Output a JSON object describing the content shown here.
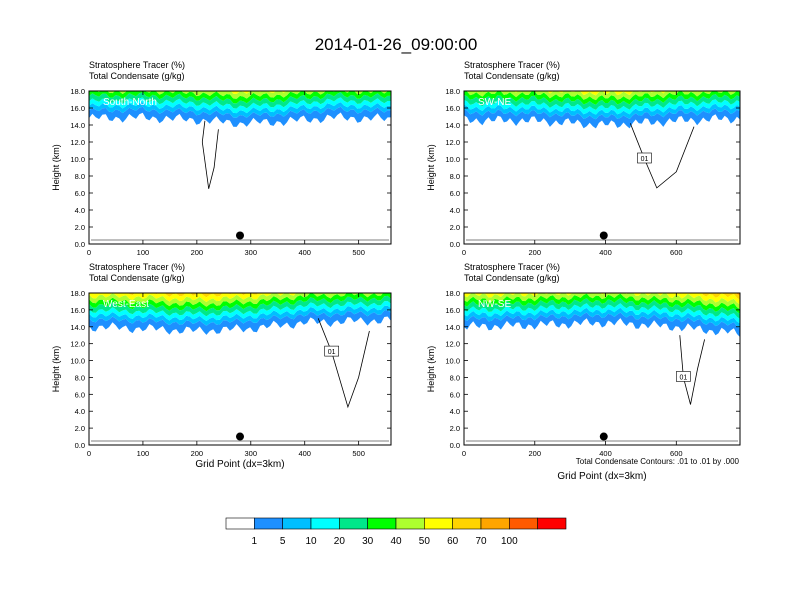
{
  "figure": {
    "title": "2014-01-26_09:00:00",
    "contour_note": "Total Condensate Contours: .01 to .01 by .000"
  },
  "colorbar": {
    "levels": [
      "1",
      "5",
      "10",
      "20",
      "30",
      "40",
      "50",
      "60",
      "70",
      "100"
    ],
    "colors": [
      "#ffffff",
      "#1e90ff",
      "#00bfff",
      "#00ffff",
      "#00e88a",
      "#00ff00",
      "#adff2f",
      "#ffff00",
      "#ffd400",
      "#ffa500",
      "#ff5a00",
      "#ff0000"
    ]
  },
  "chart_data": [
    {
      "type": "heatmap",
      "panel": "South-North",
      "title_lines": [
        "Stratosphere Tracer   (%)",
        "Total Condensate   (g/kg)"
      ],
      "ylabel": "Height (km)",
      "xlabel": "",
      "xlim": [
        0,
        560
      ],
      "ylim": [
        0,
        18
      ],
      "x_ticks": [
        "0",
        "100",
        "200",
        "300",
        "400",
        "500"
      ],
      "y_ticks": [
        "0.0",
        "2.0",
        "4.0",
        "6.0",
        "8.0",
        "10.0",
        "12.0",
        "14.0",
        "16.0",
        "18.0"
      ],
      "marker": {
        "x": 280,
        "y": 1.0
      },
      "tracer_front": [
        {
          "x": 0,
          "y": 14.8
        },
        {
          "x": 100,
          "y": 14.9
        },
        {
          "x": 200,
          "y": 14.6
        },
        {
          "x": 280,
          "y": 14.2
        },
        {
          "x": 360,
          "y": 14.4
        },
        {
          "x": 450,
          "y": 14.9
        },
        {
          "x": 560,
          "y": 14.7
        }
      ],
      "condensate_contour": [
        {
          "x": 215,
          "y": 14.5
        },
        {
          "x": 210,
          "y": 12
        },
        {
          "x": 222,
          "y": 6.5
        },
        {
          "x": 232,
          "y": 9
        },
        {
          "x": 240,
          "y": 13.5
        }
      ]
    },
    {
      "type": "heatmap",
      "panel": "SW-NE",
      "title_lines": [
        "Stratosphere Tracer   (%)",
        "Total Condensate   (g/kg)"
      ],
      "ylabel": "Height (km)",
      "xlabel": "",
      "xlim": [
        0,
        780
      ],
      "ylim": [
        0,
        18
      ],
      "x_ticks": [
        "0",
        "200",
        "400",
        "600"
      ],
      "y_ticks": [
        "0.0",
        "2.0",
        "4.0",
        "6.0",
        "8.0",
        "10.0",
        "12.0",
        "14.0",
        "16.0",
        "18.0"
      ],
      "marker": {
        "x": 395,
        "y": 1.0
      },
      "contour_label": "01",
      "tracer_front": [
        {
          "x": 0,
          "y": 14.6
        },
        {
          "x": 200,
          "y": 14.5
        },
        {
          "x": 400,
          "y": 14.0
        },
        {
          "x": 600,
          "y": 14.5
        },
        {
          "x": 780,
          "y": 14.8
        }
      ],
      "condensate_contour": [
        {
          "x": 470,
          "y": 14.2
        },
        {
          "x": 510,
          "y": 10
        },
        {
          "x": 545,
          "y": 6.6
        },
        {
          "x": 600,
          "y": 8.5
        },
        {
          "x": 650,
          "y": 13.8
        }
      ]
    },
    {
      "type": "heatmap",
      "panel": "West-East",
      "title_lines": [
        "Stratosphere Tracer   (%)",
        "Total Condensate   (g/kg)"
      ],
      "ylabel": "Height (km)",
      "xlabel": "Grid Point (dx=3km)",
      "xlim": [
        0,
        560
      ],
      "ylim": [
        0,
        18
      ],
      "x_ticks": [
        "0",
        "100",
        "200",
        "300",
        "400",
        "500"
      ],
      "y_ticks": [
        "0.0",
        "2.0",
        "4.0",
        "6.0",
        "8.0",
        "10.0",
        "12.0",
        "14.0",
        "16.0",
        "18.0"
      ],
      "marker": {
        "x": 280,
        "y": 1.0
      },
      "contour_label": "01",
      "tracer_front": [
        {
          "x": 0,
          "y": 14.0
        },
        {
          "x": 100,
          "y": 13.8
        },
        {
          "x": 200,
          "y": 13.5
        },
        {
          "x": 300,
          "y": 13.8
        },
        {
          "x": 400,
          "y": 14.5
        },
        {
          "x": 560,
          "y": 14.8
        }
      ],
      "condensate_contour": [
        {
          "x": 425,
          "y": 15
        },
        {
          "x": 450,
          "y": 11
        },
        {
          "x": 480,
          "y": 4.5
        },
        {
          "x": 500,
          "y": 8
        },
        {
          "x": 520,
          "y": 13.5
        }
      ]
    },
    {
      "type": "heatmap",
      "panel": "NW-SE",
      "title_lines": [
        "Stratosphere Tracer   (%)",
        "Total Condensate   (g/kg)"
      ],
      "ylabel": "Height (km)",
      "xlabel": "Grid Point (dx=3km)",
      "xlim": [
        0,
        780
      ],
      "ylim": [
        0,
        18
      ],
      "x_ticks": [
        "0",
        "200",
        "400",
        "600"
      ],
      "y_ticks": [
        "0.0",
        "2.0",
        "4.0",
        "6.0",
        "8.0",
        "10.0",
        "12.0",
        "14.0",
        "16.0",
        "18.0"
      ],
      "marker": {
        "x": 395,
        "y": 1.0
      },
      "contour_label": "01",
      "tracer_front": [
        {
          "x": 0,
          "y": 14.0
        },
        {
          "x": 200,
          "y": 14.2
        },
        {
          "x": 400,
          "y": 14.5
        },
        {
          "x": 600,
          "y": 14.0
        },
        {
          "x": 780,
          "y": 13.2
        }
      ],
      "condensate_contour": [
        {
          "x": 610,
          "y": 13
        },
        {
          "x": 620,
          "y": 8
        },
        {
          "x": 640,
          "y": 4.8
        },
        {
          "x": 660,
          "y": 9
        },
        {
          "x": 680,
          "y": 12.5
        }
      ]
    }
  ]
}
